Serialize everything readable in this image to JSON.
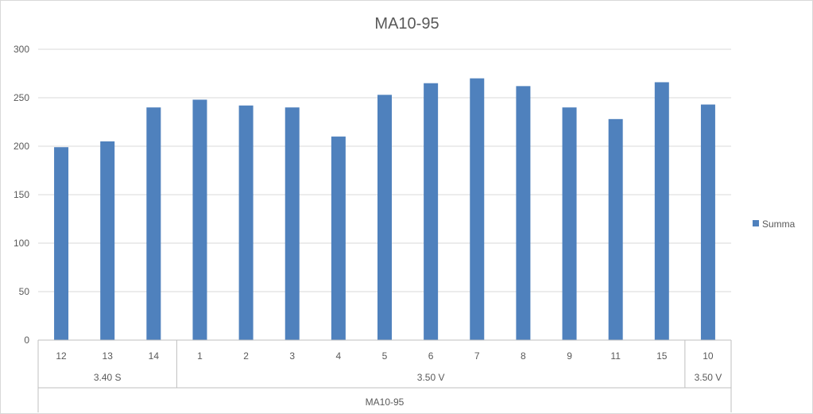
{
  "chart_data": {
    "type": "bar",
    "title": "MA10-95",
    "xlabel": "",
    "ylabel": "",
    "ylim": [
      0,
      300
    ],
    "yticks": [
      0,
      50,
      100,
      150,
      200,
      250,
      300
    ],
    "grid": true,
    "legend": "right",
    "bar_color": "#4f81bd",
    "categories": [
      "12",
      "13",
      "14",
      "1",
      "2",
      "3",
      "4",
      "5",
      "6",
      "7",
      "8",
      "9",
      "11",
      "15",
      "10"
    ],
    "category_groups": [
      {
        "label": "3.40 S",
        "span": 3
      },
      {
        "label": "3.50 V",
        "span": 11
      },
      {
        "label": "3.50 V",
        "span": 1
      }
    ],
    "top_group": {
      "label": "MA10-95",
      "span": 15
    },
    "series": [
      {
        "name": "Summa",
        "values": [
          199,
          205,
          240,
          248,
          242,
          240,
          210,
          253,
          265,
          270,
          262,
          240,
          228,
          266,
          243
        ]
      }
    ]
  }
}
